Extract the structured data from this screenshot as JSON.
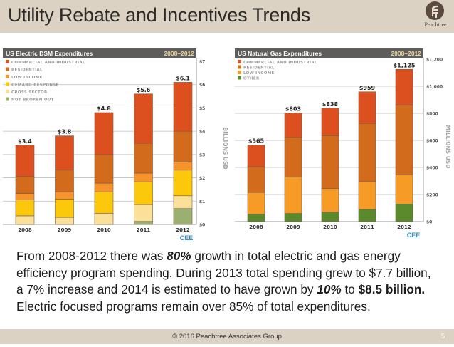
{
  "header": {
    "title": "Utility Rebate and Incentives Trends",
    "logo_text": "Peachtree"
  },
  "body_text": {
    "line1_pre": "From 2008-2012 there was ",
    "line1_bold": "80%",
    "line1_post": " growth in total electric and gas energy",
    "line2": "efficiency program spending.  During 2013 total spending grew to $7.7 billion,",
    "line3_pre": "a 7% increase and 2014 is estimated to have grown by ",
    "line3_bold1": "10%",
    "line3_mid": " to ",
    "line3_bold2": "$8.5 billion.",
    "line4": "Electric focused programs remain over 85% of total expenditures."
  },
  "footer": {
    "copyright": "© 2016 Peachtree Associates  Group",
    "page_number": "5"
  },
  "chart_data": [
    {
      "type": "bar",
      "stacked": true,
      "title": "US Electric DSM Expenditures",
      "subtitle": "2008–2012",
      "xlabel": "",
      "ylabel": "BILLIONS USD",
      "ylim": [
        0,
        7
      ],
      "yticks": [
        0,
        1,
        2,
        3,
        4,
        5,
        6,
        7
      ],
      "ytick_labels": [
        "$0",
        "$1",
        "$2",
        "$3",
        "$4",
        "$5",
        "$6",
        "$7"
      ],
      "grid": true,
      "legend_position": "top-left",
      "source_mark": "CEE",
      "categories": [
        "2008",
        "2009",
        "2010",
        "2011",
        "2012"
      ],
      "totals": [
        3.4,
        3.8,
        4.8,
        5.6,
        6.1
      ],
      "total_labels": [
        "$3.4",
        "$3.8",
        "$4.8",
        "$5.6",
        "$6.1"
      ],
      "series": [
        {
          "name": "NOT BROKEN OUT",
          "color": "#9bb070",
          "values": [
            0.0,
            0.0,
            0.0,
            0.13,
            0.68
          ]
        },
        {
          "name": "CROSS SECTOR",
          "color": "#fbe09a",
          "values": [
            0.37,
            0.3,
            0.48,
            0.72,
            0.55
          ]
        },
        {
          "name": "DEMAND RESPONSE",
          "color": "#fcc80c",
          "values": [
            0.68,
            0.78,
            0.92,
            0.98,
            1.1
          ]
        },
        {
          "name": "LOW INCOME",
          "color": "#f6932a",
          "values": [
            0.28,
            0.32,
            0.37,
            0.37,
            0.34
          ]
        },
        {
          "name": "RESIDENTIAL",
          "color": "#d36b1c",
          "values": [
            0.74,
            0.93,
            1.23,
            1.28,
            1.33
          ]
        },
        {
          "name": "COMMERCIAL AND INDUSTRIAL",
          "color": "#dc5020",
          "values": [
            1.33,
            1.47,
            1.8,
            2.12,
            2.1
          ]
        }
      ]
    },
    {
      "type": "bar",
      "stacked": true,
      "title": "US Natural Gas Expenditures",
      "subtitle": "2008–2012",
      "xlabel": "",
      "ylabel": "MILLIONS USD",
      "ylim": [
        0,
        1200
      ],
      "yticks": [
        0,
        200,
        400,
        600,
        800,
        1000,
        1200
      ],
      "ytick_labels": [
        "$0",
        "$200",
        "$400",
        "$600",
        "$800",
        "$1,000",
        "$1,200"
      ],
      "grid": true,
      "legend_position": "top-left",
      "source_mark": "CEE",
      "categories": [
        "2008",
        "2009",
        "2010",
        "2011",
        "2012"
      ],
      "totals": [
        565,
        803,
        838,
        959,
        1125
      ],
      "total_labels": [
        "$565",
        "$803",
        "$838",
        "$959",
        "$1,125"
      ],
      "series": [
        {
          "name": "OTHER",
          "color": "#5a8a2c",
          "values": [
            55,
            60,
            70,
            90,
            130
          ]
        },
        {
          "name": "LOW INCOME",
          "color": "#f69b26",
          "values": [
            160,
            270,
            175,
            205,
            215
          ]
        },
        {
          "name": "RESIDENTIAL",
          "color": "#d36b1c",
          "values": [
            190,
            295,
            390,
            430,
            515
          ]
        },
        {
          "name": "COMMERCIAL AND INDUSTRIAL",
          "color": "#dc5020",
          "values": [
            160,
            178,
            203,
            234,
            265
          ]
        }
      ]
    }
  ]
}
